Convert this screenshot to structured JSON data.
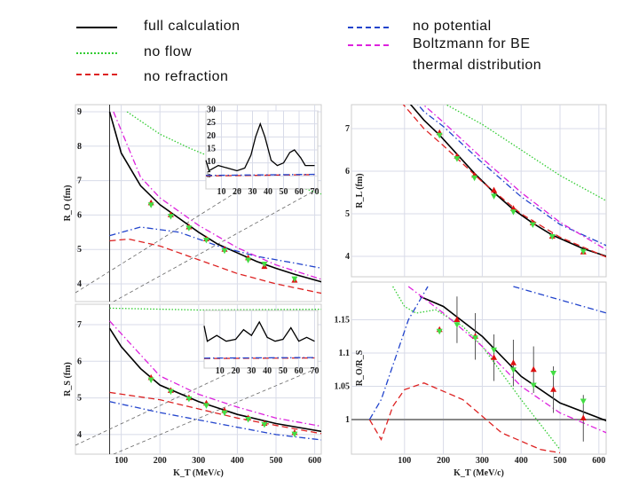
{
  "legend": {
    "entries": [
      {
        "label": "full calculation",
        "color": "#000000",
        "style": "solid"
      },
      {
        "label": "no flow",
        "color": "#33cc33",
        "style": "dotted"
      },
      {
        "label": "no refraction",
        "color": "#dd2222",
        "style": "dashed"
      },
      {
        "label": "no potential",
        "color": "#2244cc",
        "style": "dashdot"
      },
      {
        "label": "Boltzmann for BE",
        "color": "#dd22dd",
        "style": "dashdot"
      }
    ],
    "extra_line": "thermal distribution"
  },
  "chart_data": [
    {
      "type": "line",
      "panel": "top-left",
      "ylabel": "R_O (fm)",
      "xlabel": "",
      "xlim": [
        0,
        620
      ],
      "ylim": [
        3.6,
        9.1
      ],
      "yticks": [
        4,
        5,
        6,
        7,
        8,
        9
      ],
      "xticks": [
        100,
        200,
        300,
        400,
        500,
        600
      ],
      "show_xticklabels": false,
      "grid": true,
      "series": [
        {
          "name": "full calculation",
          "x": [
            70,
            100,
            150,
            200,
            250,
            300,
            350,
            400,
            450,
            500,
            550,
            620
          ],
          "y": [
            9,
            7.8,
            6.85,
            6.3,
            5.9,
            5.5,
            5.15,
            4.9,
            4.65,
            4.45,
            4.27,
            4.05
          ]
        },
        {
          "name": "no flow",
          "x": [
            115,
            200,
            275,
            350,
            450,
            550,
            620
          ],
          "y": [
            9,
            8.35,
            7.95,
            7.6,
            7.2,
            6.85,
            6.6
          ]
        },
        {
          "name": "no refraction",
          "x": [
            70,
            120,
            200,
            300,
            400,
            500,
            620
          ],
          "y": [
            5.25,
            5.3,
            5.1,
            4.7,
            4.3,
            4.0,
            3.72
          ]
        },
        {
          "name": "no potential",
          "x": [
            70,
            150,
            250,
            350,
            450,
            550,
            620
          ],
          "y": [
            5.4,
            5.65,
            5.5,
            5.1,
            4.8,
            4.6,
            4.45
          ]
        },
        {
          "name": "Boltzmann for BE",
          "x": [
            80,
            150,
            200,
            300,
            400,
            500,
            620
          ],
          "y": [
            9,
            7.1,
            6.5,
            5.7,
            5.05,
            4.55,
            4.12
          ]
        }
      ],
      "points_red": {
        "x": [
          177,
          228,
          275,
          320,
          367,
          428,
          470,
          548
        ],
        "y": [
          6.35,
          6.0,
          5.65,
          5.3,
          5.0,
          4.75,
          4.5,
          4.1
        ]
      },
      "points_green": {
        "x": [
          177,
          228,
          275,
          320,
          367,
          428,
          470,
          548
        ],
        "y": [
          6.3,
          5.97,
          5.63,
          5.28,
          4.97,
          4.7,
          4.58,
          4.15
        ]
      },
      "inset": {
        "xlim": [
          0,
          72
        ],
        "ylim": [
          0,
          30
        ],
        "xticks": [
          10,
          20,
          30,
          40,
          50,
          60,
          70
        ],
        "yticks": [
          5,
          10,
          15,
          20,
          25,
          30
        ],
        "series": [
          {
            "name": "full calculation",
            "x": [
              0,
              2,
              8,
              14,
              20,
              25,
              29,
              32,
              35,
              38,
              42,
              46,
              50,
              54,
              57,
              61,
              64,
              70
            ],
            "y": [
              11,
              7,
              9,
              8,
              7,
              8,
              13,
              20,
              25,
              20,
              11,
              9,
              10,
              14,
              15,
              12,
              9,
              9
            ]
          },
          {
            "name": "no refraction",
            "x": [
              0,
              70
            ],
            "y": [
              5,
              5.5
            ]
          },
          {
            "name": "no potential",
            "x": [
              0,
              70
            ],
            "y": [
              5.2,
              5.6
            ]
          }
        ]
      }
    },
    {
      "type": "line",
      "panel": "bottom-left",
      "ylabel": "R_S (fm)",
      "xlabel": "K_T (MeV/c)",
      "xlim": [
        0,
        620
      ],
      "ylim": [
        3.6,
        7.6
      ],
      "yticks": [
        4,
        5,
        6,
        7
      ],
      "xticks": [
        100,
        200,
        300,
        400,
        500,
        600
      ],
      "show_xticklabels": true,
      "grid": true,
      "series": [
        {
          "name": "full calculation",
          "x": [
            70,
            100,
            150,
            200,
            300,
            400,
            500,
            620
          ],
          "y": [
            6.9,
            6.4,
            5.8,
            5.35,
            4.9,
            4.55,
            4.3,
            4.08
          ]
        },
        {
          "name": "no flow",
          "x": [
            70,
            300,
            620
          ],
          "y": [
            7.45,
            7.4,
            7.42
          ]
        },
        {
          "name": "no refraction",
          "x": [
            70,
            200,
            300,
            400,
            500,
            620
          ],
          "y": [
            5.15,
            4.95,
            4.7,
            4.45,
            4.25,
            4.02
          ]
        },
        {
          "name": "no potential",
          "x": [
            70,
            200,
            300,
            400,
            500,
            620
          ],
          "y": [
            4.9,
            4.6,
            4.4,
            4.2,
            4.0,
            3.85
          ]
        },
        {
          "name": "Boltzmann for BE",
          "x": [
            70,
            200,
            300,
            400,
            500,
            620
          ],
          "y": [
            7.1,
            5.6,
            5.1,
            4.75,
            4.45,
            4.22
          ]
        }
      ],
      "points_red": {
        "x": [
          177,
          228,
          275,
          320,
          367,
          428,
          470,
          548
        ],
        "y": [
          5.55,
          5.2,
          5.0,
          4.85,
          4.65,
          4.45,
          4.3,
          4.05
        ]
      },
      "points_green": {
        "x": [
          177,
          228,
          275,
          320,
          367,
          428,
          470,
          548
        ],
        "y": [
          5.5,
          5.18,
          4.98,
          4.8,
          4.6,
          4.42,
          4.28,
          4.02
        ]
      },
      "inset": {
        "xlim": [
          0,
          72
        ],
        "ylim": [
          0,
          30
        ],
        "xticks": [
          10,
          20,
          30,
          40,
          50,
          60,
          70
        ],
        "yticks": [],
        "series": [
          {
            "name": "full calculation",
            "x": [
              0,
              2,
              8,
              14,
              20,
              25,
              30,
              35,
              40,
              45,
              50,
              55,
              60,
              65,
              70
            ],
            "y": [
              22,
              14,
              17,
              14,
              15,
              20,
              17,
              24,
              16,
              14,
              15,
              21,
              14,
              16,
              14
            ]
          },
          {
            "name": "no refraction",
            "x": [
              0,
              70
            ],
            "y": [
              5,
              5.3
            ]
          },
          {
            "name": "no potential",
            "x": [
              0,
              70
            ],
            "y": [
              5.2,
              5.5
            ]
          }
        ]
      }
    },
    {
      "type": "line",
      "panel": "top-right",
      "ylabel": "R_L (fm)",
      "xlabel": "",
      "xlim": [
        0,
        620
      ],
      "ylim": [
        3.7,
        7.5
      ],
      "yticks": [
        4,
        5,
        6,
        7
      ],
      "xticks": [
        100,
        200,
        300,
        400,
        500,
        600
      ],
      "show_xticklabels": false,
      "grid": true,
      "series": [
        {
          "name": "full calculation",
          "x": [
            75,
            150,
            190,
            235,
            280,
            330,
            380,
            430,
            480,
            560,
            620
          ],
          "y": [
            8,
            7.2,
            6.85,
            6.4,
            5.95,
            5.5,
            5.1,
            4.78,
            4.5,
            4.18,
            4.0
          ]
        },
        {
          "name": "no flow",
          "x": [
            100,
            200,
            300,
            400,
            500,
            620
          ],
          "y": [
            8,
            7.6,
            7.1,
            6.5,
            5.9,
            5.3
          ]
        },
        {
          "name": "no refraction",
          "x": [
            75,
            150,
            200,
            300,
            400,
            500,
            620
          ],
          "y": [
            7.8,
            7.0,
            6.6,
            5.75,
            5.0,
            4.45,
            3.98
          ]
        },
        {
          "name": "no potential",
          "x": [
            75,
            150,
            200,
            300,
            400,
            500,
            620
          ],
          "y": [
            8.2,
            7.4,
            7.05,
            6.2,
            5.4,
            4.75,
            4.25
          ]
        },
        {
          "name": "Boltzmann for BE",
          "x": [
            75,
            150,
            200,
            300,
            400,
            500,
            620
          ],
          "y": [
            8.4,
            7.55,
            7.15,
            6.3,
            5.5,
            4.8,
            4.15
          ]
        }
      ],
      "points_red": {
        "x": [
          190,
          235,
          280,
          330,
          380,
          430,
          480,
          560
        ],
        "y": [
          6.9,
          6.35,
          5.9,
          5.55,
          5.12,
          4.78,
          4.47,
          4.1
        ]
      },
      "points_green": {
        "x": [
          190,
          235,
          280,
          330,
          380,
          430,
          480,
          560
        ],
        "y": [
          6.85,
          6.3,
          5.85,
          5.42,
          5.05,
          4.75,
          4.47,
          4.12
        ]
      }
    },
    {
      "type": "line",
      "panel": "bottom-right",
      "ylabel": "R_O/R_S",
      "xlabel": "K_T (MeV/c)",
      "xlim": [
        0,
        620
      ],
      "ylim": [
        0.95,
        1.2
      ],
      "yticks": [
        1,
        1.05,
        1.1,
        1.15
      ],
      "ytick_labels": [
        "1",
        "1.05",
        "1.1",
        "1.15"
      ],
      "xticks": [
        100,
        200,
        300,
        400,
        500,
        600
      ],
      "show_xticklabels": true,
      "grid": true,
      "series": [
        {
          "name": "full calculation",
          "x": [
            140,
            200,
            300,
            400,
            500,
            620
          ],
          "y": [
            1.185,
            1.17,
            1.125,
            1.065,
            1.025,
            0.998
          ]
        },
        {
          "name": "no flow",
          "x": [
            70,
            100,
            130,
            180,
            250,
            300,
            400,
            500
          ],
          "y": [
            1.2,
            1.17,
            1.16,
            1.165,
            1.14,
            1.11,
            1.03,
            0.955
          ]
        },
        {
          "name": "no refraction",
          "x": [
            10,
            40,
            70,
            100,
            150,
            250,
            350,
            450,
            500
          ],
          "y": [
            1.0,
            0.97,
            1.02,
            1.045,
            1.055,
            1.03,
            0.98,
            0.955,
            0.95
          ]
        },
        {
          "name": "no potential",
          "x": [
            10,
            40,
            110,
            160
          ],
          "y": [
            1.0,
            1.03,
            1.15,
            1.2
          ]
        },
        {
          "name": "no potential",
          "x": [
            380,
            500,
            620
          ],
          "y": [
            1.2,
            1.18,
            1.16
          ]
        },
        {
          "name": "Boltzmann for BE",
          "x": [
            110,
            200,
            300,
            400,
            500,
            620
          ],
          "y": [
            1.2,
            1.16,
            1.11,
            1.05,
            1.01,
            0.98
          ]
        }
      ],
      "points_red": {
        "x": [
          190,
          235,
          282,
          330,
          380,
          432,
          483,
          560
        ],
        "y": [
          1.135,
          1.15,
          1.125,
          1.093,
          1.085,
          1.075,
          1.045,
          1.002
        ]
      },
      "points_green": {
        "x": [
          190,
          235,
          282,
          330,
          380,
          432,
          483,
          560
        ],
        "y": [
          1.133,
          1.143,
          1.123,
          1.105,
          1.075,
          1.052,
          1.07,
          1.028
        ]
      },
      "error": 0.035,
      "reference_line": 1
    }
  ]
}
